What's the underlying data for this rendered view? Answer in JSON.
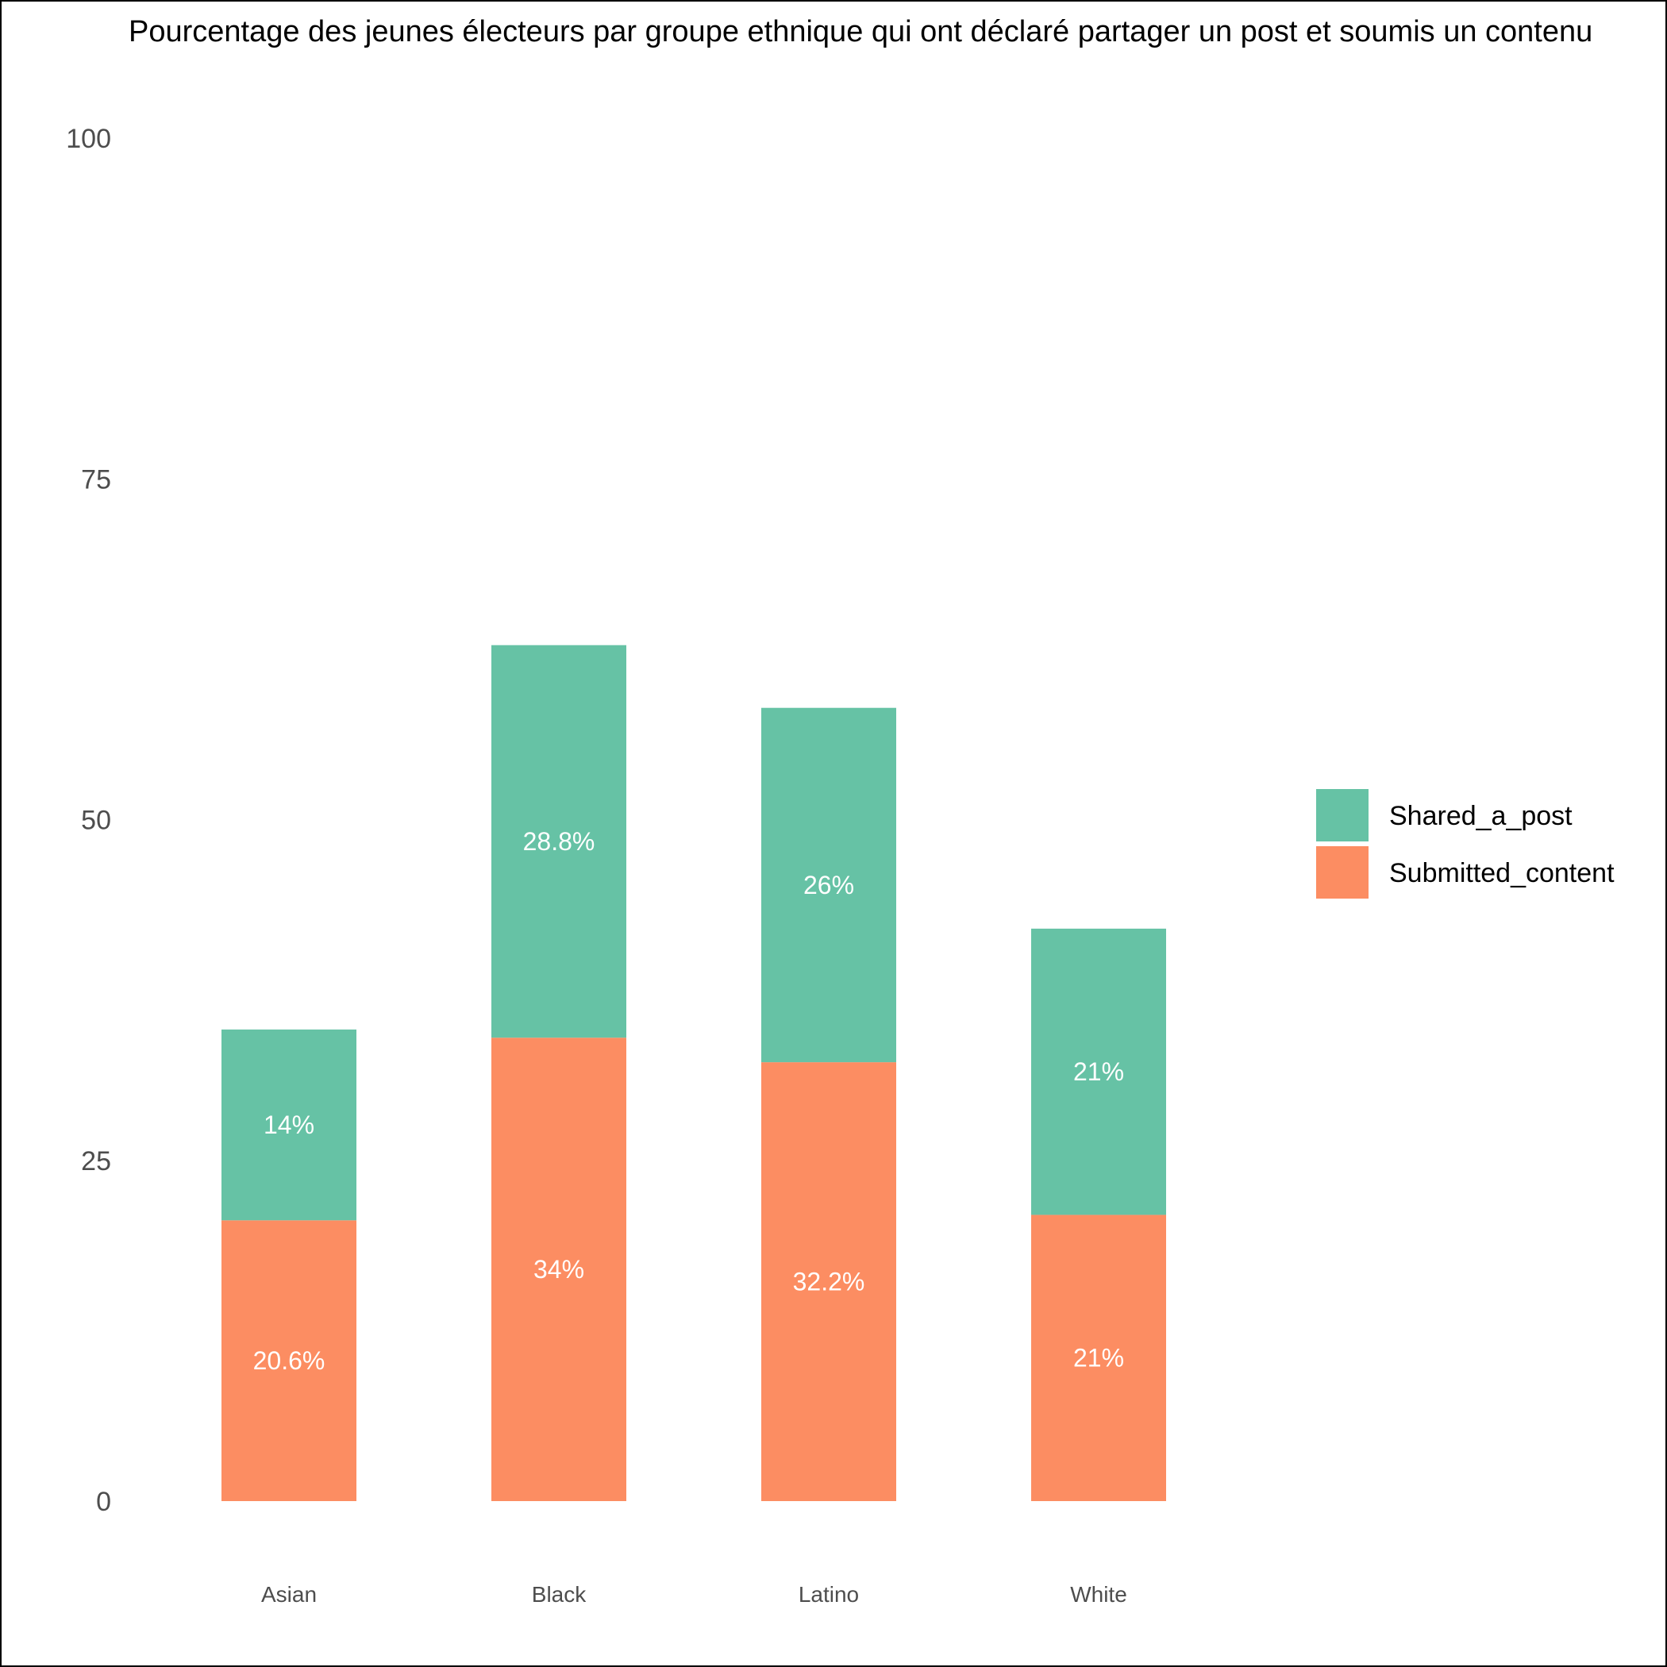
{
  "chart_data": {
    "type": "bar",
    "stacked": true,
    "title": "Pourcentage des jeunes électeurs par groupe ethnique qui ont déclaré partager un post et soumis un contenu",
    "xlabel": "",
    "ylabel": "",
    "categories": [
      "Asian",
      "Black",
      "Latino",
      "White"
    ],
    "ylim": [
      0,
      100
    ],
    "yticks": [
      0,
      25,
      50,
      75,
      100
    ],
    "grid": false,
    "legend_position": "right",
    "series": [
      {
        "name": "Submitted_content",
        "color": "#FC8D62",
        "values": [
          20.6,
          34,
          32.2,
          21
        ],
        "labels": [
          "20.6%",
          "34%",
          "32.2%",
          "21%"
        ]
      },
      {
        "name": "Shared_a_post",
        "color": "#66C2A5",
        "values": [
          14,
          28.8,
          26,
          21
        ],
        "labels": [
          "14%",
          "28.8%",
          "26%",
          "21%"
        ]
      }
    ],
    "legend_order": [
      "Shared_a_post",
      "Submitted_content"
    ]
  }
}
